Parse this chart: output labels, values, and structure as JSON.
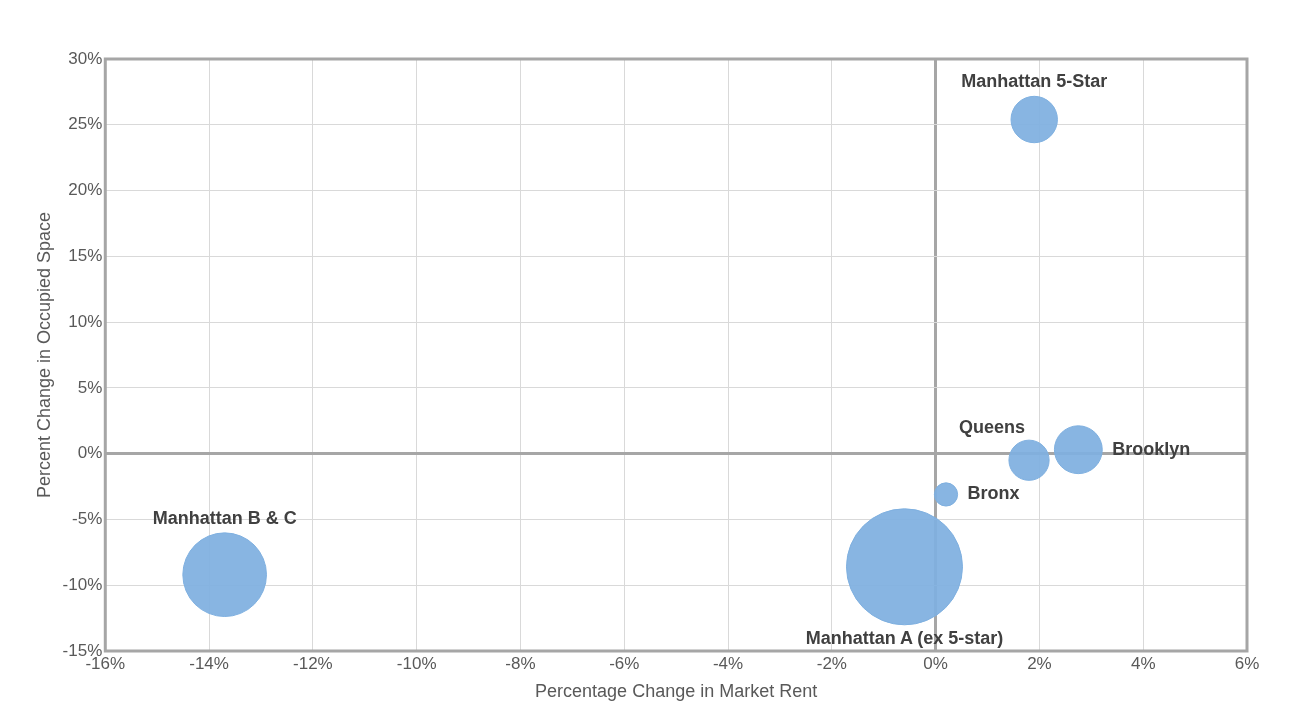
{
  "chart_data": {
    "type": "bubble",
    "xlabel": "Percentage Change in Market Rent",
    "ylabel": "Percent Change in Occupied Space",
    "series": [
      {
        "name": "Manhattan 5-Star",
        "color": "#7fb0e0",
        "x": [
          1.9
        ],
        "values": [
          25.4
        ],
        "sizes": [
          0.16
        ]
      },
      {
        "name": "Queens",
        "color": "#7fb0e0",
        "x": [
          1.8
        ],
        "values": [
          -0.5
        ],
        "sizes": [
          0.12
        ]
      },
      {
        "name": "Brooklyn",
        "color": "#7fb0e0",
        "x": [
          2.75
        ],
        "values": [
          0.3
        ],
        "sizes": [
          0.17
        ]
      },
      {
        "name": "Bronx",
        "color": "#7fb0e0",
        "x": [
          0.2
        ],
        "values": [
          -3.1
        ],
        "sizes": [
          0.04
        ]
      },
      {
        "name": "Manhattan A (ex 5-star)",
        "color": "#7fb0e0",
        "x": [
          -0.6
        ],
        "values": [
          -8.6
        ],
        "sizes": [
          1
        ]
      },
      {
        "name": "Manhattan B & C",
        "color": "#7fb0e0",
        "x": [
          -13.7
        ],
        "values": [
          -9.2
        ],
        "sizes": [
          0.52
        ]
      }
    ],
    "xlim": [
      -16,
      6
    ],
    "xticks": [
      {
        "value": -16,
        "label": "-16%"
      },
      {
        "value": -14,
        "label": "-14%"
      },
      {
        "value": -12,
        "label": "-12%"
      },
      {
        "value": -10,
        "label": "-10%"
      },
      {
        "value": -8,
        "label": "-8%"
      },
      {
        "value": -6,
        "label": "-6%"
      },
      {
        "value": -4,
        "label": "-4%"
      },
      {
        "value": -2,
        "label": "-2%"
      },
      {
        "value": 0,
        "label": "0%"
      },
      {
        "value": 2,
        "label": "2%"
      },
      {
        "value": 4,
        "label": "4%"
      },
      {
        "value": 6,
        "label": "6%"
      }
    ],
    "ylim": [
      -15,
      30
    ],
    "yticks": [
      {
        "value": -15,
        "label": "-15%"
      },
      {
        "value": -10,
        "label": "-10%"
      },
      {
        "value": -5,
        "label": "-5%"
      },
      {
        "value": 0,
        "label": "0%"
      },
      {
        "value": 5,
        "label": "5%"
      },
      {
        "value": 10,
        "label": "10%"
      },
      {
        "value": 15,
        "label": "15%"
      },
      {
        "value": 20,
        "label": "20%"
      },
      {
        "value": 25,
        "label": "25%"
      },
      {
        "value": 30,
        "label": "30%"
      }
    ],
    "grid": true,
    "legend": false
  }
}
